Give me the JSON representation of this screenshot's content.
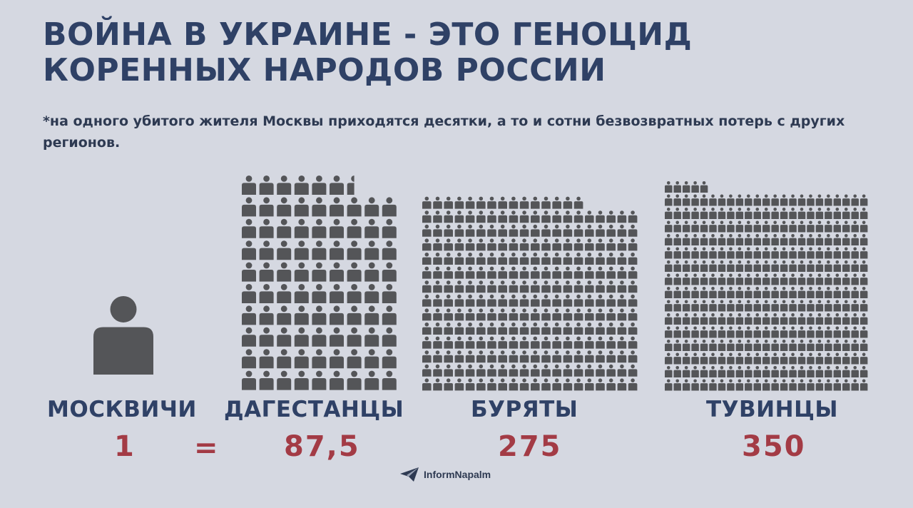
{
  "title": {
    "line1": "ВОЙНА В УКРАИНЕ - ЭТО ГЕНОЦИД",
    "line2": "КОРЕННЫХ НАРОДОВ РОССИИ"
  },
  "note": "*на одного убитого жителя Москвы приходятся десятки, а то и сотни безвозвратных потерь с других регионов.",
  "equals_sign": "=",
  "chart_data": {
    "type": "bar",
    "categories": [
      "МОСКВИЧИ",
      "ДАГЕСТАНЦЫ",
      "БУРЯТЫ",
      "ТУВИНЦЫ"
    ],
    "values": [
      1,
      87.5,
      275,
      350
    ],
    "value_labels": [
      "1",
      "87,5",
      "275",
      "350"
    ],
    "xlabel": "",
    "ylabel": "",
    "colors": {
      "icon": "#545558",
      "value": "#a33b45",
      "label": "#2f4166",
      "background": "#d5d8e1"
    }
  },
  "logo": {
    "icon": "paper-plane-icon",
    "text": "InformNapalm"
  }
}
